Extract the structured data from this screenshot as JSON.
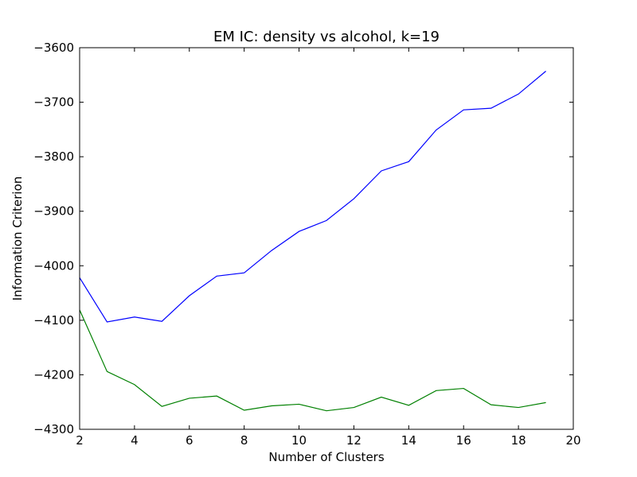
{
  "chart_data": {
    "type": "line",
    "title": "EM IC: density vs alcohol, k=19",
    "xlabel": "Number of Clusters",
    "ylabel": "Information Criterion",
    "xlim": [
      2,
      20
    ],
    "ylim": [
      -4300,
      -3600
    ],
    "xticks": [
      2,
      4,
      6,
      8,
      10,
      12,
      14,
      16,
      18,
      20
    ],
    "yticks": [
      -3600,
      -3700,
      -3800,
      -3900,
      -4000,
      -4100,
      -4200,
      -4300
    ],
    "x": [
      2,
      3,
      4,
      5,
      6,
      7,
      8,
      9,
      10,
      11,
      12,
      13,
      14,
      15,
      16,
      17,
      18,
      19
    ],
    "series": [
      {
        "color": "#0000ff",
        "values": [
          -4022,
          -4103,
          -4094,
          -4102,
          -4055,
          -4019,
          -4013,
          -3972,
          -3937,
          -3917,
          -3877,
          -3826,
          -3809,
          -3751,
          -3714,
          -3711,
          -3685,
          -3643
        ]
      },
      {
        "color": "#008000",
        "values": [
          -4081,
          -4194,
          -4218,
          -4258,
          -4243,
          -4239,
          -4265,
          -4257,
          -4254,
          -4266,
          -4260,
          -4241,
          -4256,
          -4229,
          -4225,
          -4255,
          -4260,
          -4251
        ]
      }
    ],
    "grid": false,
    "legend": "none"
  }
}
